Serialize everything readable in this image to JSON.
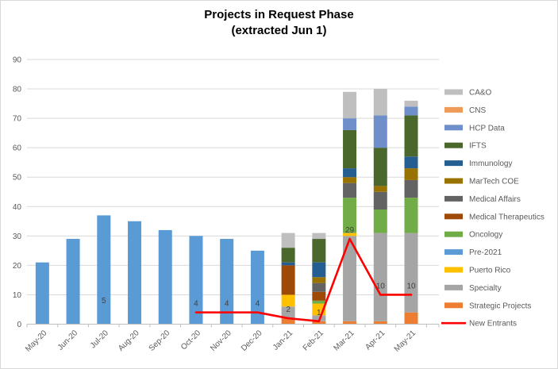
{
  "chart_data": {
    "type": "bar",
    "combo": "stacked-column-with-line",
    "title": "Projects in Request Phase",
    "subtitle": "(extracted Jun 1)",
    "categories": [
      "May-20",
      "Jun-20",
      "Jul-20",
      "Aug-20",
      "Sep-20",
      "Oct-20",
      "Nov-20",
      "Dec-20",
      "Jan-21",
      "Feb-21",
      "Mar-21",
      "Apr-21",
      "May-21"
    ],
    "ylim": [
      0,
      90
    ],
    "ytick_step": 10,
    "grid": true,
    "legend_position": "right",
    "series": [
      {
        "name": "CA&O",
        "color": "#BFBFBF",
        "values": [
          0,
          0,
          0,
          0,
          0,
          0,
          0,
          0,
          5,
          2,
          9,
          9,
          2
        ]
      },
      {
        "name": "CNS",
        "color": "#ED9B57",
        "values": [
          0,
          0,
          0,
          0,
          0,
          0,
          0,
          0,
          0,
          0,
          0,
          0,
          0
        ]
      },
      {
        "name": "HCP Data",
        "color": "#6E8FC9",
        "values": [
          0,
          0,
          0,
          0,
          0,
          0,
          0,
          0,
          0,
          0,
          4,
          11,
          3
        ]
      },
      {
        "name": "IFTS",
        "color": "#4A682C",
        "values": [
          0,
          0,
          0,
          0,
          0,
          0,
          0,
          0,
          5,
          8,
          13,
          13,
          14
        ]
      },
      {
        "name": "Immunology",
        "color": "#255E91",
        "values": [
          0,
          0,
          0,
          0,
          0,
          0,
          0,
          0,
          1,
          5,
          3,
          0,
          4
        ]
      },
      {
        "name": "MarTech COE",
        "color": "#997300",
        "values": [
          0,
          0,
          0,
          0,
          0,
          0,
          0,
          0,
          0,
          2,
          2,
          2,
          4
        ]
      },
      {
        "name": "Medical Affairs",
        "color": "#636363",
        "values": [
          0,
          0,
          0,
          0,
          0,
          0,
          0,
          0,
          0,
          3,
          5,
          6,
          6
        ]
      },
      {
        "name": "Medical Therapeutics",
        "color": "#9E4A06",
        "values": [
          0,
          0,
          0,
          0,
          0,
          0,
          0,
          0,
          10,
          3,
          0,
          0,
          0
        ]
      },
      {
        "name": "Oncology",
        "color": "#70AD47",
        "values": [
          0,
          0,
          0,
          0,
          0,
          0,
          0,
          0,
          0,
          1,
          12,
          8,
          12
        ]
      },
      {
        "name": "Pre-2021",
        "color": "#5B9BD5",
        "values": [
          21,
          29,
          37,
          35,
          32,
          30,
          29,
          25,
          0,
          0,
          0,
          0,
          0
        ]
      },
      {
        "name": "Puerto Rico",
        "color": "#FFC000",
        "values": [
          0,
          0,
          0,
          0,
          0,
          0,
          0,
          0,
          4,
          4,
          1,
          0,
          0
        ]
      },
      {
        "name": "Specialty",
        "color": "#A5A5A5",
        "values": [
          0,
          0,
          0,
          0,
          0,
          0,
          0,
          0,
          4,
          2,
          29,
          30,
          27
        ]
      },
      {
        "name": "Strategic Projects",
        "color": "#ED7D31",
        "values": [
          0,
          0,
          0,
          0,
          0,
          0,
          0,
          0,
          2,
          1,
          1,
          1,
          4
        ]
      }
    ],
    "stack_order_bottom_to_top": [
      "Strategic Projects",
      "Specialty",
      "Puerto Rico",
      "Pre-2021",
      "Oncology",
      "Medical Therapeutics",
      "Medical Affairs",
      "MarTech COE",
      "Immunology",
      "IFTS",
      "HCP Data",
      "CNS",
      "CA&O"
    ],
    "line_series": {
      "name": "New Entrants",
      "color": "#FF0000",
      "values": [
        null,
        null,
        5,
        null,
        null,
        4,
        4,
        4,
        2,
        1,
        29,
        10,
        10
      ],
      "show_labels": true
    },
    "bar_totals": [
      21,
      29,
      37,
      35,
      32,
      30,
      29,
      25,
      31,
      31,
      79,
      80,
      76
    ],
    "visible_point_labels": [
      "5",
      "4",
      "4",
      "4",
      "2",
      "1",
      "29",
      "10",
      "10"
    ]
  },
  "style_colors": {
    "axis_text": "#595959",
    "data_label_text": "#404040",
    "gridline": "#D9D9D9",
    "axis_line": "#BFBFBF",
    "background": "#FFFFFF",
    "border": "#D9D9D9"
  }
}
